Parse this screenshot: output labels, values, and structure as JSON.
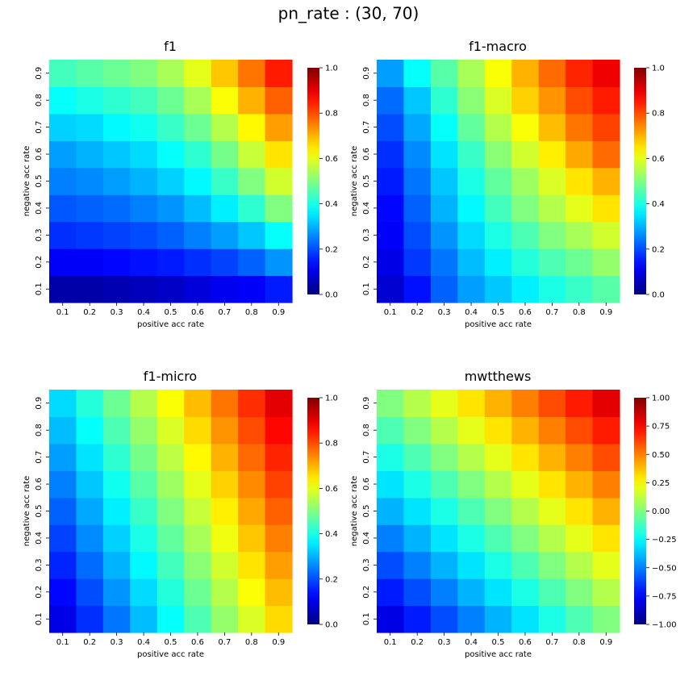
{
  "figure": {
    "suptitle": "pn_rate : (30, 70)"
  },
  "chart_data": [
    {
      "type": "heatmap",
      "title": "f1",
      "xlabel": "positive acc rate",
      "ylabel": "negative acc rate",
      "x": [
        "0.1",
        "0.2",
        "0.3",
        "0.4",
        "0.5",
        "0.6",
        "0.7",
        "0.8",
        "0.9"
      ],
      "y": [
        "0.1",
        "0.2",
        "0.3",
        "0.4",
        "0.5",
        "0.6",
        "0.7",
        "0.8",
        "0.9"
      ],
      "values": [
        [
          0.04,
          0.04,
          0.05,
          0.06,
          0.07,
          0.09,
          0.11,
          0.12,
          0.15
        ],
        [
          0.12,
          0.12,
          0.13,
          0.14,
          0.15,
          0.17,
          0.19,
          0.22,
          0.27
        ],
        [
          0.17,
          0.18,
          0.19,
          0.2,
          0.22,
          0.25,
          0.28,
          0.32,
          0.38
        ],
        [
          0.21,
          0.22,
          0.23,
          0.25,
          0.27,
          0.31,
          0.36,
          0.42,
          0.5
        ],
        [
          0.25,
          0.26,
          0.28,
          0.3,
          0.33,
          0.37,
          0.43,
          0.5,
          0.58
        ],
        [
          0.28,
          0.3,
          0.32,
          0.34,
          0.38,
          0.42,
          0.49,
          0.57,
          0.65
        ],
        [
          0.33,
          0.34,
          0.37,
          0.39,
          0.43,
          0.48,
          0.55,
          0.63,
          0.72
        ],
        [
          0.38,
          0.4,
          0.42,
          0.44,
          0.48,
          0.54,
          0.62,
          0.7,
          0.78
        ],
        [
          0.44,
          0.46,
          0.48,
          0.5,
          0.54,
          0.6,
          0.68,
          0.76,
          0.85
        ]
      ],
      "colorbar": {
        "ticks": [
          "0.0",
          "0.2",
          "0.4",
          "0.6",
          "0.8",
          "1.0"
        ],
        "range": [
          0,
          1
        ]
      },
      "colormap": "jet"
    },
    {
      "type": "heatmap",
      "title": "f1-macro",
      "xlabel": "positive acc rate",
      "ylabel": "negative acc rate",
      "x": [
        "0.1",
        "0.2",
        "0.3",
        "0.4",
        "0.5",
        "0.6",
        "0.7",
        "0.8",
        "0.9"
      ],
      "y": [
        "0.1",
        "0.2",
        "0.3",
        "0.4",
        "0.5",
        "0.6",
        "0.7",
        "0.8",
        "0.9"
      ],
      "values": [
        [
          0.08,
          0.14,
          0.22,
          0.28,
          0.32,
          0.36,
          0.4,
          0.43,
          0.46
        ],
        [
          0.1,
          0.18,
          0.24,
          0.31,
          0.36,
          0.41,
          0.45,
          0.48,
          0.52
        ],
        [
          0.12,
          0.2,
          0.27,
          0.34,
          0.4,
          0.45,
          0.5,
          0.54,
          0.58
        ],
        [
          0.13,
          0.22,
          0.3,
          0.37,
          0.44,
          0.5,
          0.55,
          0.6,
          0.65
        ],
        [
          0.15,
          0.24,
          0.32,
          0.4,
          0.47,
          0.53,
          0.59,
          0.65,
          0.7
        ],
        [
          0.17,
          0.26,
          0.35,
          0.43,
          0.51,
          0.58,
          0.64,
          0.71,
          0.77
        ],
        [
          0.2,
          0.29,
          0.38,
          0.47,
          0.55,
          0.62,
          0.69,
          0.76,
          0.81
        ],
        [
          0.23,
          0.32,
          0.42,
          0.51,
          0.59,
          0.67,
          0.73,
          0.8,
          0.85
        ],
        [
          0.28,
          0.38,
          0.46,
          0.54,
          0.62,
          0.7,
          0.77,
          0.84,
          0.89
        ]
      ],
      "colorbar": {
        "ticks": [
          "0.0",
          "0.2",
          "0.4",
          "0.6",
          "0.8",
          "1.0"
        ],
        "range": [
          0,
          1
        ]
      },
      "colormap": "jet"
    },
    {
      "type": "heatmap",
      "title": "f1-micro",
      "xlabel": "positive acc rate",
      "ylabel": "negative acc rate",
      "x": [
        "0.1",
        "0.2",
        "0.3",
        "0.4",
        "0.5",
        "0.6",
        "0.7",
        "0.8",
        "0.9"
      ],
      "y": [
        "0.1",
        "0.2",
        "0.3",
        "0.4",
        "0.5",
        "0.6",
        "0.7",
        "0.8",
        "0.9"
      ],
      "values": [
        [
          0.1,
          0.17,
          0.24,
          0.31,
          0.38,
          0.45,
          0.52,
          0.59,
          0.66
        ],
        [
          0.13,
          0.2,
          0.27,
          0.34,
          0.41,
          0.48,
          0.55,
          0.62,
          0.69
        ],
        [
          0.16,
          0.23,
          0.3,
          0.37,
          0.44,
          0.51,
          0.58,
          0.65,
          0.72
        ],
        [
          0.19,
          0.26,
          0.33,
          0.4,
          0.47,
          0.54,
          0.61,
          0.68,
          0.75
        ],
        [
          0.22,
          0.29,
          0.36,
          0.43,
          0.5,
          0.57,
          0.64,
          0.71,
          0.78
        ],
        [
          0.25,
          0.32,
          0.39,
          0.46,
          0.53,
          0.6,
          0.67,
          0.74,
          0.81
        ],
        [
          0.28,
          0.35,
          0.42,
          0.49,
          0.56,
          0.63,
          0.7,
          0.77,
          0.84
        ],
        [
          0.31,
          0.38,
          0.45,
          0.52,
          0.59,
          0.66,
          0.73,
          0.8,
          0.87
        ],
        [
          0.34,
          0.41,
          0.48,
          0.55,
          0.62,
          0.69,
          0.76,
          0.83,
          0.9
        ]
      ],
      "colorbar": {
        "ticks": [
          "0.0",
          "0.2",
          "0.4",
          "0.6",
          "0.8",
          "1.0"
        ],
        "range": [
          0,
          1
        ]
      },
      "colormap": "jet"
    },
    {
      "type": "heatmap",
      "title": "mwtthews",
      "xlabel": "positive acc rate",
      "ylabel": "negative acc rate",
      "x": [
        "0.1",
        "0.2",
        "0.3",
        "0.4",
        "0.5",
        "0.6",
        "0.7",
        "0.8",
        "0.9"
      ],
      "y": [
        "0.1",
        "0.2",
        "0.3",
        "0.4",
        "0.5",
        "0.6",
        "0.7",
        "0.8",
        "0.9"
      ],
      "values": [
        [
          -0.8,
          -0.7,
          -0.6,
          -0.5,
          -0.4,
          -0.3,
          -0.2,
          -0.1,
          0.0
        ],
        [
          -0.7,
          -0.6,
          -0.5,
          -0.4,
          -0.3,
          -0.2,
          -0.1,
          0.0,
          0.1
        ],
        [
          -0.6,
          -0.5,
          -0.4,
          -0.3,
          -0.2,
          -0.1,
          0.0,
          0.1,
          0.2
        ],
        [
          -0.5,
          -0.4,
          -0.3,
          -0.2,
          -0.1,
          0.0,
          0.1,
          0.2,
          0.3
        ],
        [
          -0.4,
          -0.3,
          -0.2,
          -0.1,
          0.0,
          0.1,
          0.2,
          0.3,
          0.4
        ],
        [
          -0.3,
          -0.2,
          -0.1,
          0.0,
          0.1,
          0.2,
          0.3,
          0.4,
          0.5
        ],
        [
          -0.2,
          -0.1,
          0.0,
          0.1,
          0.2,
          0.3,
          0.4,
          0.5,
          0.6
        ],
        [
          -0.1,
          0.0,
          0.1,
          0.2,
          0.3,
          0.4,
          0.5,
          0.6,
          0.7
        ],
        [
          0.0,
          0.1,
          0.2,
          0.3,
          0.4,
          0.5,
          0.6,
          0.7,
          0.8
        ]
      ],
      "colorbar": {
        "ticks": [
          "−1.00",
          "−0.75",
          "−0.50",
          "−0.25",
          "0.00",
          "0.25",
          "0.50",
          "0.75",
          "1.00"
        ],
        "range": [
          -1,
          1
        ]
      },
      "colormap": "jet"
    }
  ]
}
